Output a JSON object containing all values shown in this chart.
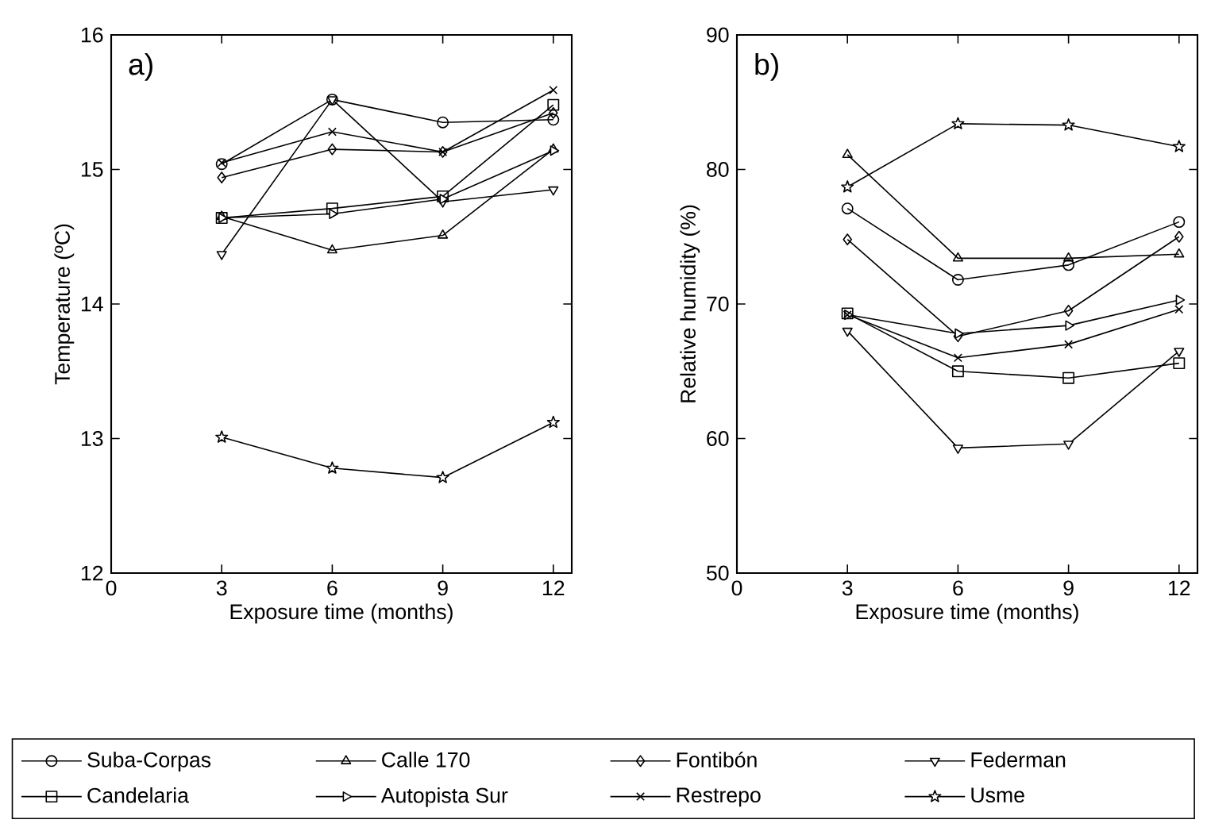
{
  "chart_data": [
    {
      "type": "line",
      "xlabel": "Exposure time (months)",
      "ylabel": "Temperature (ºC)",
      "annotations": [
        "a)"
      ],
      "x": [
        3,
        6,
        9,
        12
      ],
      "xlim": [
        0,
        12.5
      ],
      "xticks": [
        0,
        3,
        6,
        9,
        12
      ],
      "ylim": [
        12,
        16
      ],
      "yticks": [
        12,
        13,
        14,
        15,
        16
      ],
      "color": "#000000",
      "series": [
        {
          "marker": "circle",
          "values": [
            15.04,
            15.52,
            15.35,
            15.37
          ]
        },
        {
          "marker": "triangle",
          "values": [
            14.65,
            14.4,
            14.51,
            15.15
          ]
        },
        {
          "marker": "diamond",
          "values": [
            14.94,
            15.15,
            15.13,
            15.42
          ]
        },
        {
          "marker": "triangle-down",
          "values": [
            14.37,
            15.52,
            14.76,
            14.85
          ]
        },
        {
          "marker": "square",
          "values": [
            14.64,
            14.71,
            14.8,
            15.48
          ]
        },
        {
          "marker": "triangle-right",
          "values": [
            14.64,
            14.67,
            14.78,
            15.14
          ]
        },
        {
          "marker": "cross",
          "values": [
            15.05,
            15.28,
            15.13,
            15.59
          ]
        },
        {
          "marker": "star",
          "values": [
            13.01,
            12.78,
            12.71,
            13.12
          ]
        }
      ]
    },
    {
      "type": "line",
      "xlabel": "Exposure time (months)",
      "ylabel": "Relative humidity (%)",
      "annotations": [
        "b)"
      ],
      "x": [
        3,
        6,
        9,
        12
      ],
      "xlim": [
        0,
        12.5
      ],
      "xticks": [
        0,
        3,
        6,
        9,
        12
      ],
      "ylim": [
        50,
        90
      ],
      "yticks": [
        50,
        60,
        70,
        80,
        90
      ],
      "color": "#000000",
      "legend": "bottom",
      "series": [
        {
          "name": "Suba-Corpas",
          "marker": "circle",
          "values": [
            77.1,
            71.8,
            72.9,
            76.1
          ]
        },
        {
          "name": "Calle 170",
          "marker": "triangle",
          "values": [
            81.1,
            73.4,
            73.4,
            73.7
          ]
        },
        {
          "name": "Fontibón",
          "marker": "diamond",
          "values": [
            74.8,
            67.6,
            69.5,
            75.0
          ]
        },
        {
          "name": "Federman",
          "marker": "triangle-down",
          "values": [
            68.0,
            59.3,
            59.6,
            66.5
          ]
        },
        {
          "name": "Candelaria",
          "marker": "square",
          "values": [
            69.3,
            65.0,
            64.5,
            65.6
          ]
        },
        {
          "name": "Autopista Sur",
          "marker": "triangle-right",
          "values": [
            69.2,
            67.8,
            68.4,
            70.3
          ]
        },
        {
          "name": "Restrepo",
          "marker": "cross",
          "values": [
            69.2,
            66.0,
            67.0,
            69.6
          ]
        },
        {
          "name": "Usme",
          "marker": "star",
          "values": [
            78.7,
            83.4,
            83.3,
            81.7
          ]
        }
      ]
    }
  ]
}
